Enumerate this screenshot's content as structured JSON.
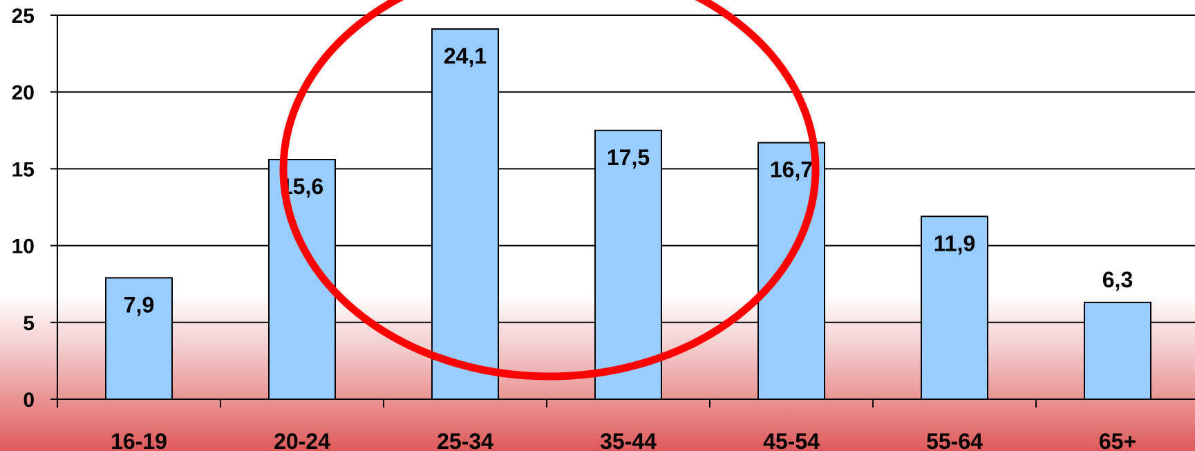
{
  "chart_data": {
    "type": "bar",
    "categories": [
      "16-19",
      "20-24",
      "25-34",
      "35-44",
      "45-54",
      "55-64",
      "65+"
    ],
    "values": [
      7.9,
      15.6,
      24.1,
      17.5,
      16.7,
      11.9,
      6.3
    ],
    "value_labels": [
      "7,9",
      "15,6",
      "24,1",
      "17,5",
      "16,7",
      "11,9",
      "6,3"
    ],
    "y_ticks": [
      "0",
      "5",
      "10",
      "15",
      "20",
      "25"
    ],
    "ylim": [
      0,
      25
    ],
    "grid": true,
    "title": "",
    "xlabel": "",
    "ylabel": "",
    "bar_color": "#99ccff",
    "highlight_color": "#ff0000",
    "highlight_annotation": "red ellipse around 20-24 through 45-54"
  }
}
